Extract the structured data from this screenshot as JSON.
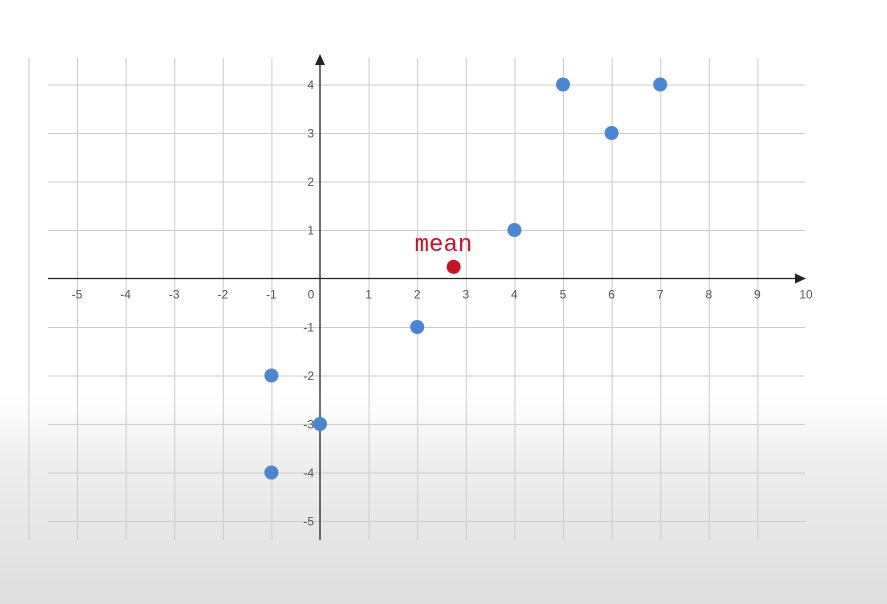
{
  "chart_data": {
    "type": "scatter",
    "xlim": [
      -5,
      10
    ],
    "ylim": [
      -5,
      4
    ],
    "x_ticks": [
      -5,
      -4,
      -3,
      -2,
      -1,
      0,
      1,
      2,
      3,
      4,
      5,
      6,
      7,
      8,
      9,
      10
    ],
    "y_ticks": [
      4,
      3,
      2,
      1,
      -1,
      -2,
      -3,
      -4,
      -5
    ],
    "grid": true,
    "series": [
      {
        "color": "#4a86d6",
        "points": [
          {
            "x": -1,
            "y": -2
          },
          {
            "x": -1,
            "y": -4
          },
          {
            "x": 0,
            "y": -3
          },
          {
            "x": 2,
            "y": -1
          },
          {
            "x": 4,
            "y": 1
          },
          {
            "x": 5,
            "y": 4
          },
          {
            "x": 6,
            "y": 3
          },
          {
            "x": 7,
            "y": 4
          }
        ]
      }
    ],
    "annotations": [
      {
        "text": "mean",
        "x": 2.75,
        "y": 0.25,
        "color": "#cc1122"
      }
    ]
  }
}
